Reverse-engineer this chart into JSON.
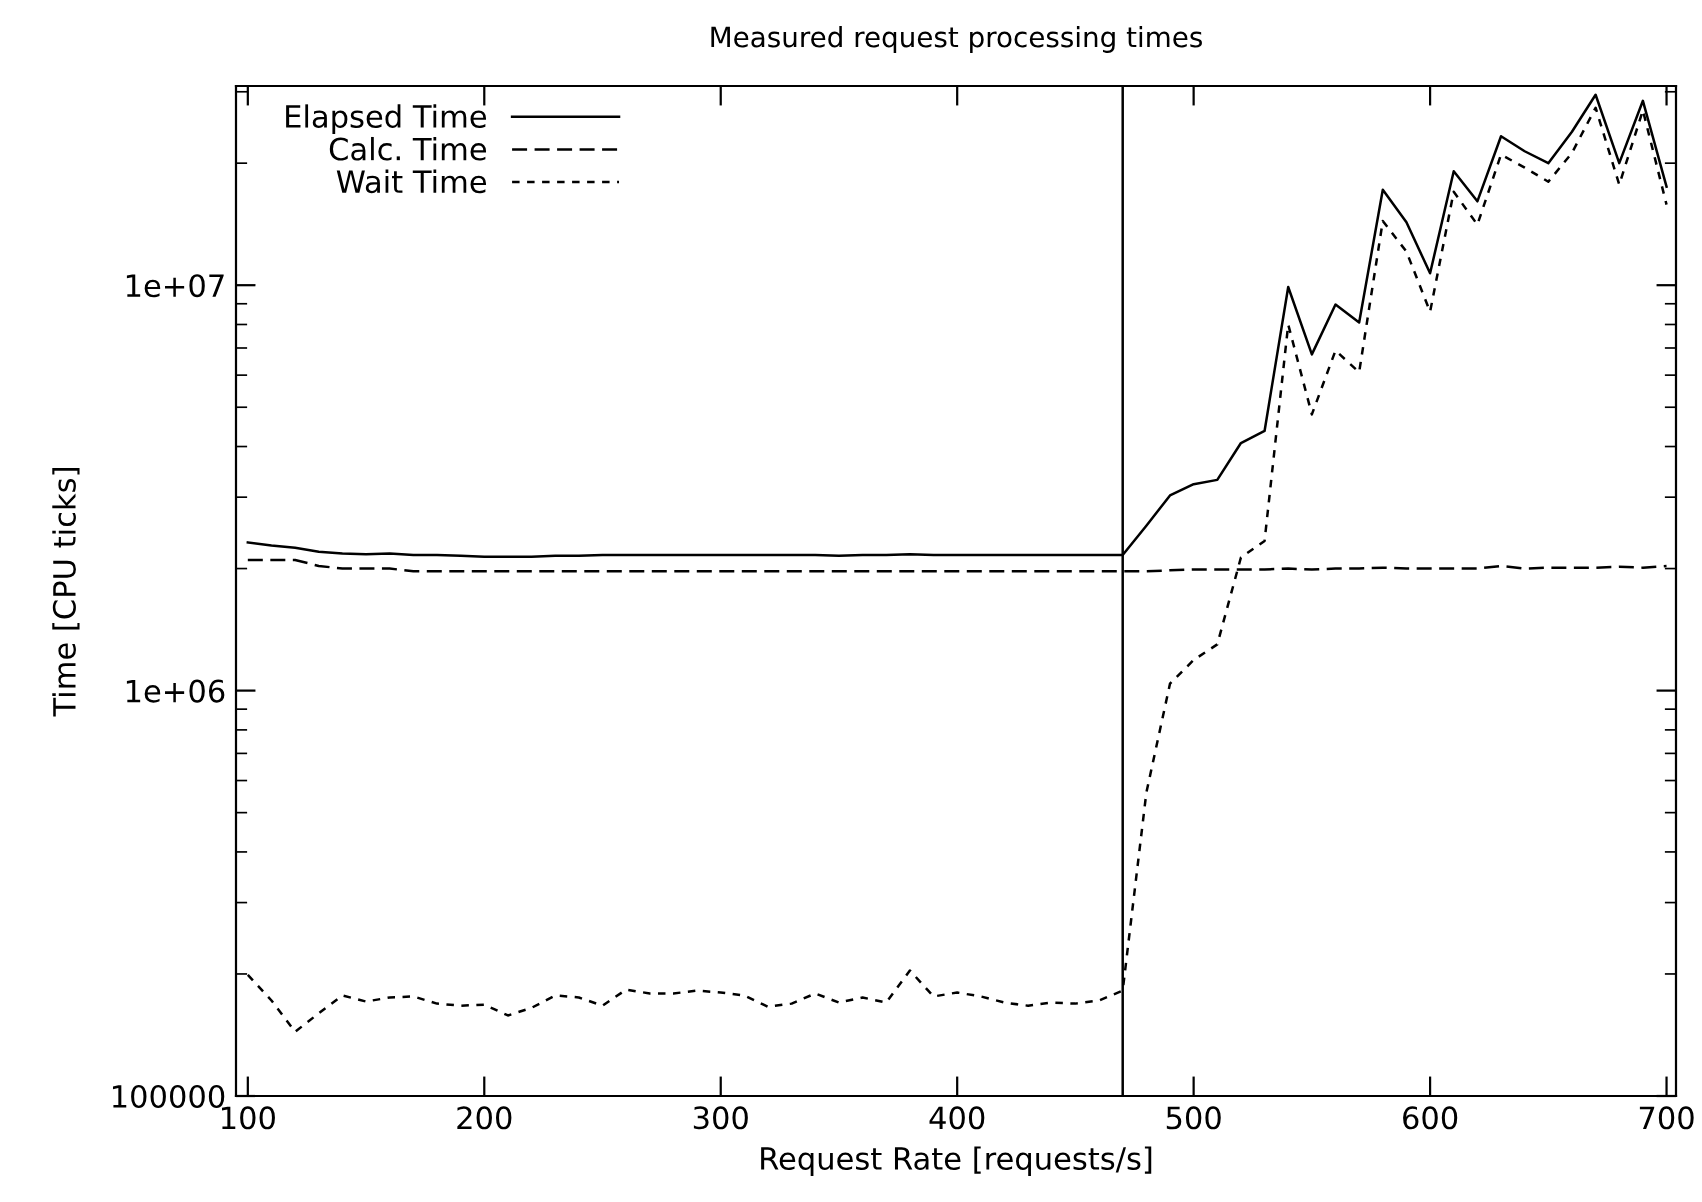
{
  "chart_data": {
    "type": "line",
    "title": "Measured request processing times",
    "xlabel": "Request Rate [requests/s]",
    "ylabel": "Time [CPU ticks]",
    "x": [
      100,
      110,
      120,
      130,
      140,
      150,
      160,
      170,
      180,
      190,
      200,
      210,
      220,
      230,
      240,
      250,
      260,
      270,
      280,
      290,
      300,
      310,
      320,
      330,
      340,
      350,
      360,
      370,
      380,
      390,
      400,
      410,
      420,
      430,
      440,
      450,
      460,
      470,
      480,
      490,
      500,
      510,
      520,
      530,
      540,
      550,
      560,
      570,
      580,
      590,
      600,
      610,
      620,
      630,
      640,
      650,
      660,
      670,
      680,
      690,
      700
    ],
    "series": [
      {
        "name": "Elapsed Time",
        "color": "#000000",
        "line_style": "solid",
        "values": [
          2320000,
          2280000,
          2250000,
          2200000,
          2180000,
          2170000,
          2180000,
          2160000,
          2160000,
          2150000,
          2140000,
          2140000,
          2140000,
          2150000,
          2150000,
          2160000,
          2160000,
          2160000,
          2160000,
          2160000,
          2160000,
          2160000,
          2160000,
          2160000,
          2160000,
          2150000,
          2160000,
          2160000,
          2170000,
          2160000,
          2160000,
          2160000,
          2160000,
          2160000,
          2160000,
          2160000,
          2160000,
          2160000,
          2550000,
          3030000,
          3230000,
          3310000,
          4080000,
          4370000,
          9900000,
          6750000,
          8960000,
          8090000,
          17200000,
          14300000,
          10700000,
          19100000,
          16100000,
          23300000,
          21400000,
          20000000,
          23900000,
          29500000,
          20000000,
          28500000,
          17500000
        ]
      },
      {
        "name": "Calc. Time",
        "color": "#000000",
        "line_style": "dashed",
        "values": [
          2100000,
          2100000,
          2100000,
          2030000,
          2000000,
          2000000,
          2000000,
          1970000,
          1970000,
          1970000,
          1970000,
          1970000,
          1970000,
          1970000,
          1970000,
          1970000,
          1970000,
          1970000,
          1970000,
          1970000,
          1970000,
          1970000,
          1970000,
          1970000,
          1970000,
          1970000,
          1970000,
          1970000,
          1970000,
          1970000,
          1970000,
          1970000,
          1970000,
          1970000,
          1970000,
          1970000,
          1970000,
          1970000,
          1970000,
          1980000,
          1990000,
          1990000,
          1990000,
          1990000,
          2000000,
          1990000,
          2000000,
          2000000,
          2010000,
          2000000,
          2000000,
          2000000,
          2000000,
          2030000,
          2000000,
          2010000,
          2010000,
          2010000,
          2020000,
          2010000,
          2030000
        ]
      },
      {
        "name": "Wait Time",
        "color": "#000000",
        "line_style": "dotted",
        "values": [
          199000,
          172000,
          144000,
          160000,
          177000,
          171000,
          175000,
          176000,
          169000,
          167000,
          168000,
          158000,
          165000,
          177000,
          175000,
          167000,
          183000,
          179000,
          179000,
          182000,
          180000,
          177000,
          166000,
          169000,
          179000,
          170000,
          175000,
          170000,
          204000,
          176000,
          180000,
          176000,
          170000,
          167000,
          170000,
          169000,
          172000,
          182000,
          560000,
          1040000,
          1190000,
          1300000,
          2130000,
          2340000,
          8000000,
          4800000,
          6900000,
          6100000,
          14400000,
          12100000,
          8600000,
          17000000,
          14100000,
          21000000,
          19500000,
          18000000,
          21200000,
          27400000,
          17700000,
          27000000,
          15800000
        ]
      }
    ],
    "xlim": [
      95,
      704
    ],
    "xticks": [
      100,
      200,
      300,
      400,
      500,
      600,
      700
    ],
    "ylim": [
      100000,
      31000000
    ],
    "log": "y",
    "yticks": [
      {
        "value": 100000,
        "label": "100000"
      },
      {
        "value": 1000000,
        "label": "1e+06"
      },
      {
        "value": 10000000,
        "label": "1e+07"
      }
    ],
    "ref_lines": [
      {
        "axis": "x",
        "value": 470,
        "color": "#000000",
        "line_style": "solid"
      }
    ],
    "legend": "top left",
    "grid": false
  }
}
